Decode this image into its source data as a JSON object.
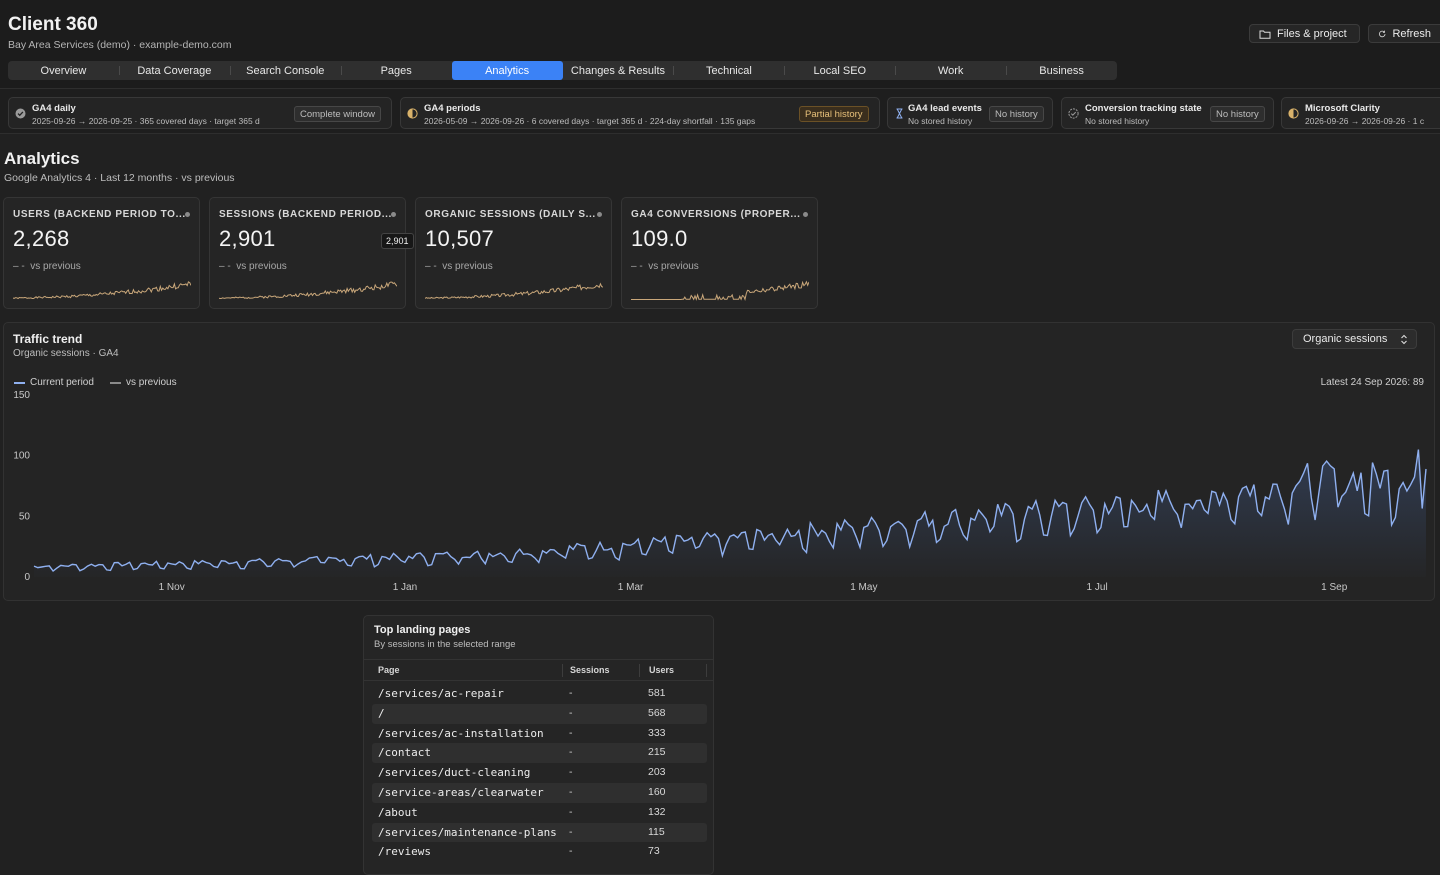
{
  "app": {
    "title": "Client 360",
    "subtitle": "Bay Area Services (demo) · example-demo.com"
  },
  "header_buttons": {
    "files": "Files & project",
    "refresh": "Refresh"
  },
  "tabs": [
    {
      "label": "Overview",
      "active": false
    },
    {
      "label": "Data Coverage",
      "active": false
    },
    {
      "label": "Search Console",
      "active": false
    },
    {
      "label": "Pages",
      "active": false
    },
    {
      "label": "Analytics",
      "active": true
    },
    {
      "label": "Changes & Results",
      "active": false
    },
    {
      "label": "Technical",
      "active": false
    },
    {
      "label": "Local SEO",
      "active": false
    },
    {
      "label": "Work",
      "active": false
    },
    {
      "label": "Business",
      "active": false
    }
  ],
  "coverage": [
    {
      "title": "GA4 daily",
      "detail": "2025-09-26 → 2026-09-25 · 365 covered days · target 365 d",
      "badge": "Complete window",
      "status_icon": "check-circle-icon"
    },
    {
      "title": "GA4 periods",
      "detail": "2026-05-09 → 2026-09-26 · 6 covered days · target 365 d · 224-day shortfall · 135 gaps",
      "badge": "Partial history",
      "status_icon": "half-circle-icon"
    },
    {
      "title": "GA4 lead events",
      "detail": "No stored history",
      "badge": "No history",
      "status_icon": "hourglass-icon"
    },
    {
      "title": "Conversion tracking state",
      "detail": "No stored history",
      "badge": "No history",
      "status_icon": "dashed-check-icon"
    },
    {
      "title": "Microsoft Clarity",
      "detail": "2026-09-26 → 2026-09-26 · 1 c",
      "badge": "",
      "status_icon": "half-circle-icon"
    }
  ],
  "section": {
    "title": "Analytics",
    "subtitle": "Google Analytics 4 · Last 12 months · vs previous"
  },
  "kpis": [
    {
      "label": "USERS (BACKEND PERIOD TO...",
      "value": "2,268",
      "delta": "– -",
      "compare": "vs previous"
    },
    {
      "label": "SESSIONS (BACKEND PERIOD...",
      "value": "2,901",
      "delta": "– -",
      "compare": "vs previous",
      "tooltip": "2,901"
    },
    {
      "label": "ORGANIC SESSIONS (DAILY S...",
      "value": "10,507",
      "delta": "– -",
      "compare": "vs previous"
    },
    {
      "label": "GA4 CONVERSIONS (PROPER...",
      "value": "109.0",
      "delta": "– -",
      "compare": "vs previous"
    }
  ],
  "colors": {
    "accent": "#3b82f6",
    "series_line": "#8fb0f0",
    "spark": "#c9a77a",
    "badge_amber": "#e7c07a"
  },
  "trend": {
    "title": "Traffic trend",
    "subtitle": "Organic sessions · GA4",
    "metric_select": "Organic sessions",
    "legend_current": "Current period",
    "legend_previous": "vs previous",
    "latest": "Latest 24 Sep 2026: 89"
  },
  "chart_data": {
    "type": "line",
    "title": "Traffic trend",
    "xlabel": "",
    "ylabel": "",
    "ylim": [
      0,
      150
    ],
    "y_ticks": [
      0,
      50,
      100,
      150
    ],
    "x_ticks": [
      "1 Nov",
      "1 Jan",
      "1 Mar",
      "1 May",
      "1 Jul",
      "1 Sep"
    ],
    "x_range": [
      "26 Sep 2025",
      "25 Sep 2026"
    ],
    "grid": false,
    "legend": "top-left",
    "series": [
      {
        "name": "Current period",
        "monthly_level": [
          {
            "x": "Oct",
            "y": 8
          },
          {
            "x": "Nov",
            "y": 10
          },
          {
            "x": "Dec",
            "y": 12
          },
          {
            "x": "Jan",
            "y": 15
          },
          {
            "x": "Feb",
            "y": 18
          },
          {
            "x": "Mar",
            "y": 24
          },
          {
            "x": "Apr",
            "y": 30
          },
          {
            "x": "May",
            "y": 38
          },
          {
            "x": "Jun",
            "y": 46
          },
          {
            "x": "Jul",
            "y": 52
          },
          {
            "x": "Aug",
            "y": 60
          },
          {
            "x": "Sep",
            "y": 75
          }
        ],
        "peak": 105,
        "latest": {
          "x": "24 Sep 2026",
          "y": 89
        }
      },
      {
        "name": "vs previous",
        "values": []
      }
    ]
  },
  "landing": {
    "title": "Top landing pages",
    "subtitle": "By sessions in the selected range",
    "columns": [
      "Page",
      "Sessions",
      "Users"
    ],
    "rows": [
      {
        "page": "/services/ac-repair",
        "sessions": "-",
        "users": "581"
      },
      {
        "page": "/",
        "sessions": "-",
        "users": "568"
      },
      {
        "page": "/services/ac-installation",
        "sessions": "-",
        "users": "333"
      },
      {
        "page": "/contact",
        "sessions": "-",
        "users": "215"
      },
      {
        "page": "/services/duct-cleaning",
        "sessions": "-",
        "users": "203"
      },
      {
        "page": "/service-areas/clearwater",
        "sessions": "-",
        "users": "160"
      },
      {
        "page": "/about",
        "sessions": "-",
        "users": "132"
      },
      {
        "page": "/services/maintenance-plans",
        "sessions": "-",
        "users": "115"
      },
      {
        "page": "/reviews",
        "sessions": "-",
        "users": "73"
      }
    ]
  }
}
